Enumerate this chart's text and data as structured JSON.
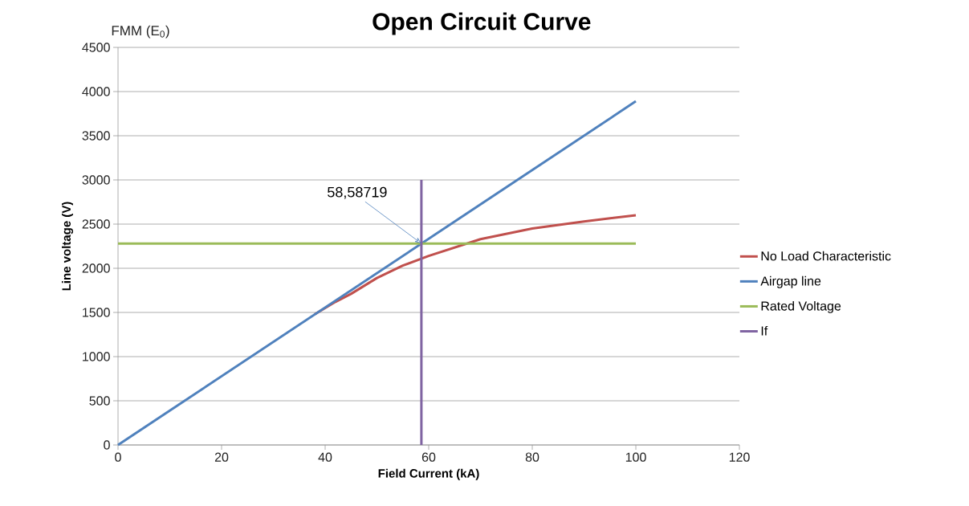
{
  "chart_data": {
    "type": "line",
    "title": "Open Circuit Curve",
    "xlabel": "Field Current (kA)",
    "ylabel": "Line voltage (V)",
    "annotations": [
      "FMM (E$_{0}$)",
      {
        "text": "58,58719",
        "x": 58.587,
        "y": 2280
      }
    ],
    "series": [
      {
        "name": "No Load Characteristic",
        "color": "#c0504d",
        "x": [
          38,
          42,
          45,
          50,
          55,
          60,
          70,
          80,
          90,
          100
        ],
        "values": [
          1480,
          1620,
          1710,
          1890,
          2030,
          2140,
          2330,
          2450,
          2530,
          2600
        ]
      },
      {
        "name": "Airgap line",
        "color": "#4f81bd",
        "x": [
          0,
          100
        ],
        "values": [
          0,
          3890
        ]
      },
      {
        "name": "Rated Voltage",
        "color": "#9bbb59",
        "x": [
          0,
          100
        ],
        "values": [
          2280,
          2280
        ]
      },
      {
        "name": "If",
        "color": "#8064a2",
        "x": [
          58.587,
          58.587
        ],
        "values": [
          0,
          3000
        ]
      }
    ],
    "xlim": [
      0,
      120
    ],
    "xticks": [
      0,
      20,
      40,
      60,
      80,
      100,
      120
    ],
    "ylim": [
      0,
      4500
    ],
    "yticks": [
      0,
      500,
      1000,
      1500,
      2000,
      2500,
      3000,
      3500,
      4000,
      4500
    ],
    "grid": "y",
    "legend": "right",
    "marker": "none",
    "line_style": "solid"
  }
}
